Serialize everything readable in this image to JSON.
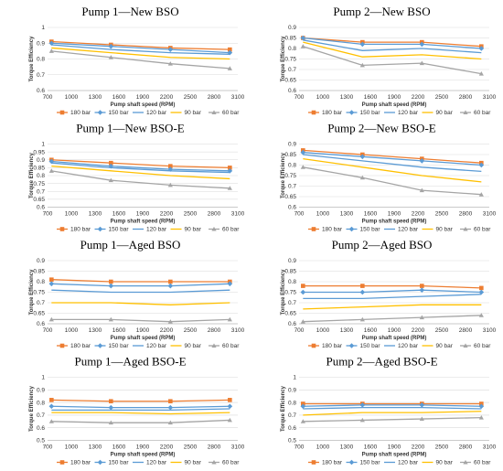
{
  "series_styles": [
    {
      "name": "180 bar",
      "color": "#ED7D31",
      "marker": "square"
    },
    {
      "name": "150 bar",
      "color": "#5B9BD5",
      "marker": "diamond"
    },
    {
      "name": "120 bar",
      "color": "#5B9BD5",
      "marker": "none"
    },
    {
      "name": "90 bar",
      "color": "#FFC000",
      "marker": "none"
    },
    {
      "name": "60 bar",
      "color": "#A5A5A5",
      "marker": "triangle"
    }
  ],
  "chart_data": [
    {
      "type": "line",
      "title": "Pump 1—New BSO",
      "xlabel": "Pump shaft speed (RPM)",
      "ylabel": "Torque Efficiency",
      "xlim": [
        700,
        3100
      ],
      "ylim": [
        0.6,
        1
      ],
      "xticks": [
        700,
        1000,
        1300,
        1600,
        1900,
        2200,
        2500,
        2800,
        3100
      ],
      "yticks": [
        0.6,
        0.7,
        0.8,
        0.9,
        1
      ],
      "legend": "bottom",
      "x": [
        750,
        1500,
        2250,
        3000
      ],
      "series": [
        {
          "name": "180 bar",
          "values": [
            0.91,
            0.89,
            0.87,
            0.86
          ]
        },
        {
          "name": "150 bar",
          "values": [
            0.9,
            0.88,
            0.86,
            0.84
          ]
        },
        {
          "name": "120 bar",
          "values": [
            0.89,
            0.86,
            0.84,
            0.83
          ]
        },
        {
          "name": "90 bar",
          "values": [
            0.87,
            0.84,
            0.81,
            0.8
          ]
        },
        {
          "name": "60 bar",
          "values": [
            0.85,
            0.81,
            0.77,
            0.74
          ]
        }
      ]
    },
    {
      "type": "line",
      "title": "Pump 2—New BSO",
      "xlabel": "Pump shaft speed (RPM)",
      "ylabel": "Torque Efficiency",
      "xlim": [
        700,
        3100
      ],
      "ylim": [
        0.6,
        0.9
      ],
      "xticks": [
        700,
        1000,
        1300,
        1600,
        1900,
        2200,
        2500,
        2800,
        3100
      ],
      "yticks": [
        0.6,
        0.65,
        0.7,
        0.75,
        0.8,
        0.85,
        0.9
      ],
      "legend": "bottom",
      "x": [
        750,
        1500,
        2250,
        3000
      ],
      "series": [
        {
          "name": "180 bar",
          "values": [
            0.85,
            0.83,
            0.83,
            0.81
          ]
        },
        {
          "name": "150 bar",
          "values": [
            0.85,
            0.82,
            0.82,
            0.8
          ]
        },
        {
          "name": "120 bar",
          "values": [
            0.84,
            0.79,
            0.8,
            0.78
          ]
        },
        {
          "name": "90 bar",
          "values": [
            0.83,
            0.76,
            0.77,
            0.75
          ]
        },
        {
          "name": "60 bar",
          "values": [
            0.81,
            0.72,
            0.73,
            0.68
          ]
        }
      ]
    },
    {
      "type": "line",
      "title": "Pump 1—New BSO-E",
      "xlabel": "Pump shaft speed (RPM)",
      "ylabel": "Torque Efficiency",
      "xlim": [
        700,
        3100
      ],
      "ylim": [
        0.6,
        1
      ],
      "xticks": [
        700,
        1000,
        1300,
        1600,
        1900,
        2200,
        2500,
        2800,
        3100
      ],
      "yticks": [
        0.6,
        0.65,
        0.7,
        0.75,
        0.8,
        0.85,
        0.9,
        0.95,
        1
      ],
      "legend": "bottom",
      "x": [
        750,
        1500,
        2250,
        3000
      ],
      "series": [
        {
          "name": "180 bar",
          "values": [
            0.9,
            0.88,
            0.86,
            0.85
          ]
        },
        {
          "name": "150 bar",
          "values": [
            0.89,
            0.86,
            0.84,
            0.83
          ]
        },
        {
          "name": "120 bar",
          "values": [
            0.88,
            0.85,
            0.83,
            0.82
          ]
        },
        {
          "name": "90 bar",
          "values": [
            0.86,
            0.83,
            0.8,
            0.78
          ]
        },
        {
          "name": "60 bar",
          "values": [
            0.83,
            0.77,
            0.74,
            0.72
          ]
        }
      ]
    },
    {
      "type": "line",
      "title": "Pump 2—New BSO-E",
      "xlabel": "Pump shaft speed (RPM)",
      "ylabel": "Torque Efficiency",
      "xlim": [
        700,
        3100
      ],
      "ylim": [
        0.6,
        0.9
      ],
      "xticks": [
        700,
        1000,
        1300,
        1600,
        1900,
        2200,
        2500,
        2800,
        3100
      ],
      "yticks": [
        0.6,
        0.65,
        0.7,
        0.75,
        0.8,
        0.85,
        0.9
      ],
      "legend": "bottom",
      "x": [
        750,
        1500,
        2250,
        3000
      ],
      "series": [
        {
          "name": "180 bar",
          "values": [
            0.87,
            0.85,
            0.83,
            0.81
          ]
        },
        {
          "name": "150 bar",
          "values": [
            0.86,
            0.84,
            0.82,
            0.8
          ]
        },
        {
          "name": "120 bar",
          "values": [
            0.85,
            0.82,
            0.79,
            0.77
          ]
        },
        {
          "name": "90 bar",
          "values": [
            0.83,
            0.79,
            0.75,
            0.72
          ]
        },
        {
          "name": "60 bar",
          "values": [
            0.79,
            0.74,
            0.68,
            0.66
          ]
        }
      ]
    },
    {
      "type": "line",
      "title": "Pump 1—Aged BSO",
      "xlabel": "Pump shaft speed (RPM)",
      "ylabel": "Torque Efficiency",
      "xlim": [
        700,
        3100
      ],
      "ylim": [
        0.6,
        0.9
      ],
      "xticks": [
        700,
        1000,
        1300,
        1600,
        1900,
        2200,
        2500,
        2800,
        3100
      ],
      "yticks": [
        0.6,
        0.65,
        0.7,
        0.75,
        0.8,
        0.85,
        0.9
      ],
      "legend": "bottom",
      "x": [
        750,
        1500,
        2250,
        3000
      ],
      "series": [
        {
          "name": "180 bar",
          "values": [
            0.81,
            0.8,
            0.8,
            0.8
          ]
        },
        {
          "name": "150 bar",
          "values": [
            0.79,
            0.78,
            0.78,
            0.79
          ]
        },
        {
          "name": "120 bar",
          "values": [
            0.76,
            0.75,
            0.75,
            0.76
          ]
        },
        {
          "name": "90 bar",
          "values": [
            0.7,
            0.7,
            0.69,
            0.7
          ]
        },
        {
          "name": "60 bar",
          "values": [
            0.62,
            0.62,
            0.61,
            0.62
          ]
        }
      ]
    },
    {
      "type": "line",
      "title": "Pump 2—Aged BSO",
      "xlabel": "Pump shaft speed (RPM)",
      "ylabel": "Torque Efficiency",
      "xlim": [
        700,
        3100
      ],
      "ylim": [
        0.6,
        0.9
      ],
      "xticks": [
        700,
        1000,
        1300,
        1600,
        1900,
        2200,
        2500,
        2800,
        3100
      ],
      "yticks": [
        0.6,
        0.65,
        0.7,
        0.75,
        0.8,
        0.85,
        0.9
      ],
      "legend": "bottom",
      "x": [
        750,
        1500,
        2250,
        3000
      ],
      "series": [
        {
          "name": "180 bar",
          "values": [
            0.78,
            0.78,
            0.78,
            0.77
          ]
        },
        {
          "name": "150 bar",
          "values": [
            0.75,
            0.75,
            0.76,
            0.75
          ]
        },
        {
          "name": "120 bar",
          "values": [
            0.72,
            0.72,
            0.73,
            0.74
          ]
        },
        {
          "name": "90 bar",
          "values": [
            0.67,
            0.68,
            0.69,
            0.69
          ]
        },
        {
          "name": "60 bar",
          "values": [
            0.61,
            0.62,
            0.63,
            0.64
          ]
        }
      ]
    },
    {
      "type": "line",
      "title": "Pump 1—Aged BSO-E",
      "xlabel": "Pump shaft speed (RPM)",
      "ylabel": "Torque Efficiency",
      "xlim": [
        700,
        3100
      ],
      "ylim": [
        0.5,
        1
      ],
      "xticks": [
        700,
        1000,
        1300,
        1600,
        1900,
        2200,
        2500,
        2800,
        3100
      ],
      "yticks": [
        0.5,
        0.6,
        0.7,
        0.8,
        0.9,
        1
      ],
      "legend": "bottom",
      "x": [
        750,
        1500,
        2250,
        3000
      ],
      "series": [
        {
          "name": "180 bar",
          "values": [
            0.82,
            0.81,
            0.81,
            0.82
          ]
        },
        {
          "name": "150 bar",
          "values": [
            0.77,
            0.76,
            0.76,
            0.77
          ]
        },
        {
          "name": "120 bar",
          "values": [
            0.74,
            0.74,
            0.74,
            0.75
          ]
        },
        {
          "name": "90 bar",
          "values": [
            0.72,
            0.72,
            0.71,
            0.72
          ]
        },
        {
          "name": "60 bar",
          "values": [
            0.65,
            0.64,
            0.64,
            0.66
          ]
        }
      ]
    },
    {
      "type": "line",
      "title": "Pump 2—Aged BSO-E",
      "xlabel": "Pump shaft speed (RPM)",
      "ylabel": "Torque Efficiency",
      "xlim": [
        700,
        3100
      ],
      "ylim": [
        0.5,
        1
      ],
      "xticks": [
        700,
        1000,
        1300,
        1600,
        1900,
        2200,
        2500,
        2800,
        3100
      ],
      "yticks": [
        0.5,
        0.6,
        0.7,
        0.8,
        0.9,
        1
      ],
      "legend": "bottom",
      "x": [
        750,
        1500,
        2250,
        3000
      ],
      "series": [
        {
          "name": "180 bar",
          "values": [
            0.79,
            0.79,
            0.79,
            0.79
          ]
        },
        {
          "name": "150 bar",
          "values": [
            0.77,
            0.78,
            0.78,
            0.77
          ]
        },
        {
          "name": "120 bar",
          "values": [
            0.75,
            0.76,
            0.76,
            0.75
          ]
        },
        {
          "name": "90 bar",
          "values": [
            0.7,
            0.72,
            0.72,
            0.73
          ]
        },
        {
          "name": "60 bar",
          "values": [
            0.65,
            0.66,
            0.67,
            0.68
          ]
        }
      ]
    }
  ]
}
